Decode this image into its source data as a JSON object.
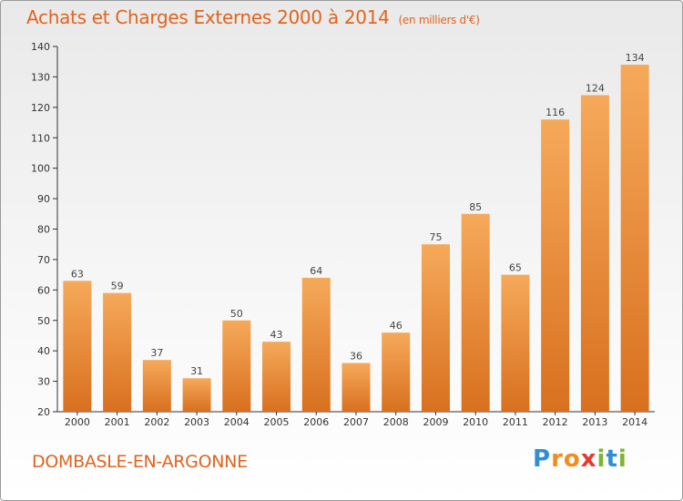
{
  "header": {
    "title": "Achats et Charges Externes 2000 à 2014",
    "unit": "(en milliers d'€)"
  },
  "footer": {
    "commune": "DOMBASLE-EN-ARGONNE",
    "logo_parts": [
      "P",
      "r",
      "o",
      "x",
      "i",
      "t",
      "i"
    ]
  },
  "colors": {
    "title": "#e0641e",
    "bar_light": "#f6a95a",
    "bar_dark": "#d8701f",
    "axis": "#333333"
  },
  "chart_data": {
    "type": "bar",
    "title": "Achats et Charges Externes 2000 à 2014",
    "subtitle": "(en milliers d'€)",
    "categories": [
      "2000",
      "2001",
      "2002",
      "2003",
      "2004",
      "2005",
      "2006",
      "2007",
      "2008",
      "2009",
      "2010",
      "2011",
      "2012",
      "2013",
      "2014"
    ],
    "values": [
      63,
      59,
      37,
      31,
      50,
      43,
      64,
      36,
      46,
      75,
      85,
      65,
      116,
      124,
      134
    ],
    "ylim": [
      20,
      140
    ],
    "yticks": [
      20,
      30,
      40,
      50,
      60,
      70,
      80,
      90,
      100,
      110,
      120,
      130,
      140
    ],
    "grid": false,
    "data_labels": true
  }
}
